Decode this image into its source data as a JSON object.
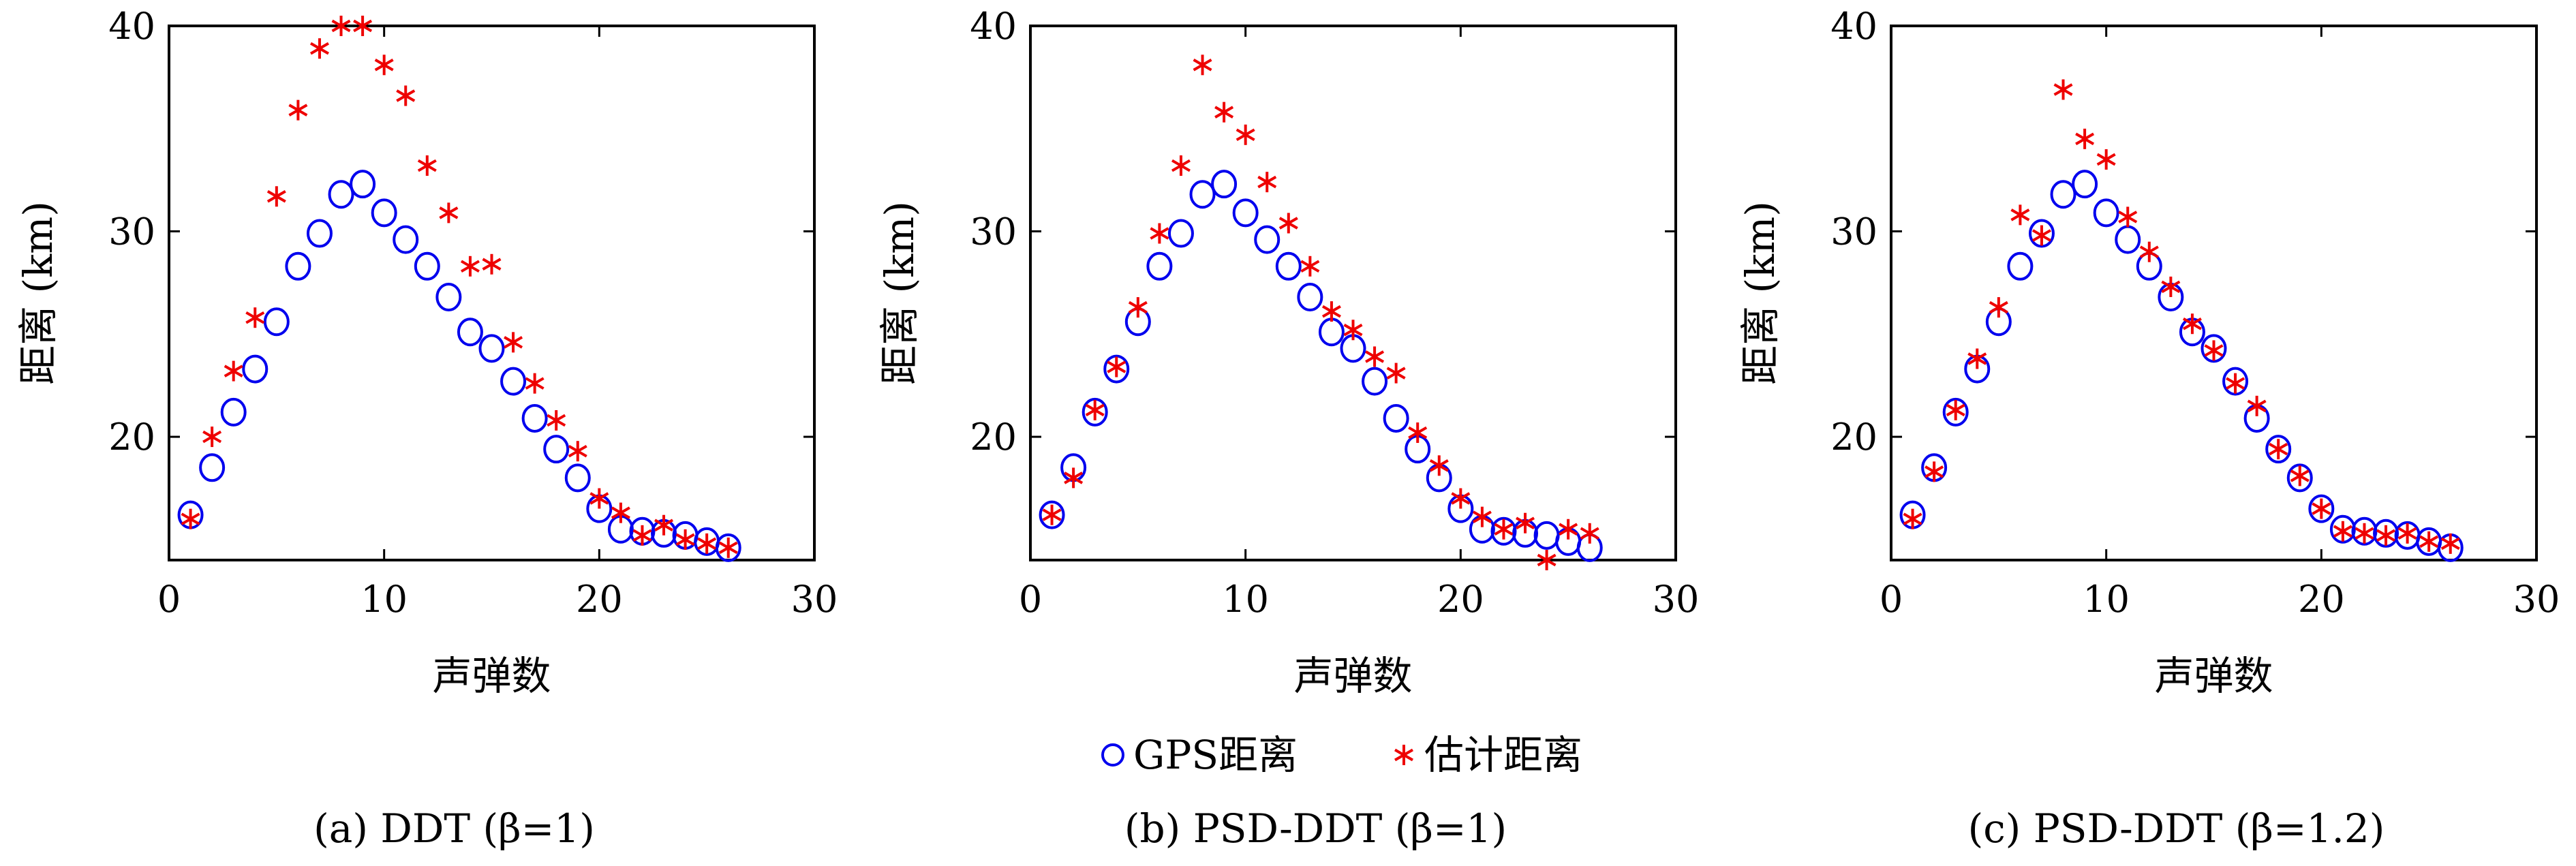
{
  "shared": {
    "xlabel": "声弹数",
    "ylabel": "距离 (km)",
    "xlim": [
      0,
      30
    ],
    "ylim": [
      14,
      40
    ],
    "xticks": [
      0,
      10,
      20,
      30
    ],
    "yticks": [
      20,
      30,
      40
    ],
    "grid": false
  },
  "legend": {
    "placement": "bottom-center",
    "items": [
      {
        "label": "GPS距离",
        "marker": "circle",
        "color": "#0000ee"
      },
      {
        "label": "估计距离",
        "marker": "asterisk",
        "color": "#ee0000"
      }
    ]
  },
  "chart_data": [
    {
      "type": "scatter",
      "caption": "(a) DDT (β=1)",
      "xlabel": "声弹数",
      "ylabel": "距离 (km)",
      "xlim": [
        0,
        30
      ],
      "ylim": [
        14,
        40
      ],
      "series": [
        {
          "name": "GPS距离",
          "marker": "circle",
          "color": "#0000ee",
          "x": [
            1,
            2,
            3,
            4,
            5,
            6,
            7,
            8,
            9,
            10,
            11,
            12,
            13,
            14,
            15,
            16,
            17,
            18,
            19,
            20,
            21,
            22,
            23,
            24,
            25,
            26
          ],
          "y": [
            16.2,
            18.5,
            21.2,
            23.3,
            25.6,
            28.3,
            29.9,
            31.8,
            32.3,
            30.9,
            29.6,
            28.3,
            26.8,
            25.1,
            24.3,
            22.7,
            20.9,
            19.4,
            18.0,
            16.5,
            15.5,
            15.4,
            15.3,
            15.2,
            14.9,
            14.6
          ]
        },
        {
          "name": "估计距离",
          "marker": "asterisk",
          "color": "#ee0000",
          "x": [
            1,
            2,
            3,
            4,
            5,
            6,
            7,
            8,
            9,
            10,
            11,
            12,
            13,
            14,
            15,
            16,
            17,
            18,
            19,
            20,
            21,
            22,
            23,
            24,
            25,
            26
          ],
          "y": [
            16.0,
            20.0,
            23.2,
            25.8,
            31.7,
            35.9,
            38.9,
            40.0,
            40.0,
            38.1,
            36.6,
            33.2,
            30.9,
            28.3,
            28.4,
            24.6,
            22.6,
            20.8,
            19.3,
            17.0,
            16.3,
            15.2,
            15.7,
            15.0,
            14.8,
            14.6
          ]
        }
      ]
    },
    {
      "type": "scatter",
      "caption": "(b) PSD-DDT (β=1)",
      "xlabel": "声弹数",
      "ylabel": "距离 (km)",
      "xlim": [
        0,
        30
      ],
      "ylim": [
        14,
        40
      ],
      "series": [
        {
          "name": "GPS距离",
          "marker": "circle",
          "color": "#0000ee",
          "x": [
            1,
            2,
            3,
            4,
            5,
            6,
            7,
            8,
            9,
            10,
            11,
            12,
            13,
            14,
            15,
            16,
            17,
            18,
            19,
            20,
            21,
            22,
            23,
            24,
            25,
            26
          ],
          "y": [
            16.2,
            18.5,
            21.2,
            23.3,
            25.6,
            28.3,
            29.9,
            31.8,
            32.3,
            30.9,
            29.6,
            28.3,
            26.8,
            25.1,
            24.3,
            22.7,
            20.9,
            19.4,
            18.0,
            16.5,
            15.5,
            15.4,
            15.3,
            15.2,
            14.9,
            14.6
          ]
        },
        {
          "name": "估计距离",
          "marker": "asterisk",
          "color": "#ee0000",
          "x": [
            1,
            2,
            3,
            4,
            5,
            6,
            7,
            8,
            9,
            10,
            11,
            12,
            13,
            14,
            15,
            16,
            17,
            18,
            19,
            20,
            21,
            22,
            23,
            24,
            25,
            26
          ],
          "y": [
            16.2,
            18.0,
            21.3,
            23.4,
            26.3,
            29.9,
            33.2,
            38.1,
            35.8,
            34.7,
            32.4,
            30.4,
            28.3,
            26.1,
            25.2,
            23.9,
            23.1,
            20.2,
            18.6,
            17.0,
            16.1,
            15.5,
            15.8,
            14.0,
            15.5,
            15.3
          ]
        }
      ]
    },
    {
      "type": "scatter",
      "caption": "(c) PSD-DDT (β=1.2)",
      "xlabel": "声弹数",
      "ylabel": "距离 (km)",
      "xlim": [
        0,
        30
      ],
      "ylim": [
        14,
        40
      ],
      "series": [
        {
          "name": "GPS距离",
          "marker": "circle",
          "color": "#0000ee",
          "x": [
            1,
            2,
            3,
            4,
            5,
            6,
            7,
            8,
            9,
            10,
            11,
            12,
            13,
            14,
            15,
            16,
            17,
            18,
            19,
            20,
            21,
            22,
            23,
            24,
            25,
            26
          ],
          "y": [
            16.2,
            18.5,
            21.2,
            23.3,
            25.6,
            28.3,
            29.9,
            31.8,
            32.3,
            30.9,
            29.6,
            28.3,
            26.8,
            25.1,
            24.3,
            22.7,
            20.9,
            19.4,
            18.0,
            16.5,
            15.5,
            15.4,
            15.3,
            15.2,
            14.9,
            14.6
          ]
        },
        {
          "name": "估计距离",
          "marker": "asterisk",
          "color": "#ee0000",
          "x": [
            1,
            2,
            3,
            4,
            5,
            6,
            7,
            8,
            9,
            10,
            11,
            12,
            13,
            14,
            15,
            16,
            17,
            18,
            19,
            20,
            21,
            22,
            23,
            24,
            25,
            26
          ],
          "y": [
            16.0,
            18.3,
            21.3,
            23.8,
            26.3,
            30.8,
            29.8,
            36.9,
            34.5,
            33.5,
            30.7,
            29.0,
            27.3,
            25.5,
            24.2,
            22.6,
            21.5,
            19.4,
            18.1,
            16.5,
            15.4,
            15.3,
            15.2,
            15.3,
            14.9,
            14.8
          ]
        }
      ]
    }
  ]
}
